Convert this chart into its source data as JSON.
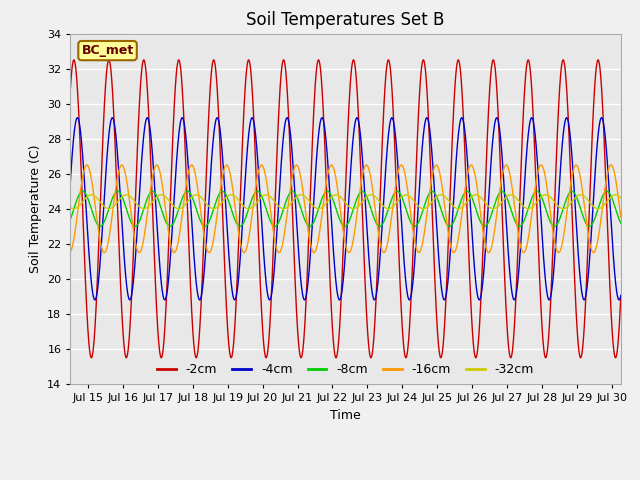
{
  "title": "Soil Temperatures Set B",
  "xlabel": "Time",
  "ylabel": "Soil Temperature (C)",
  "ylim": [
    14,
    34
  ],
  "xlim_days": [
    14.5,
    30.25
  ],
  "xtick_days": [
    15,
    16,
    17,
    18,
    19,
    20,
    21,
    22,
    23,
    24,
    25,
    26,
    27,
    28,
    29,
    30
  ],
  "xtick_labels": [
    "Jul 15",
    "Jul 16",
    "Jul 17",
    "Jul 18",
    "Jul 19",
    "Jul 20",
    "Jul 21",
    "Jul 22",
    "Jul 23",
    "Jul 24",
    "Jul 25",
    "Jul 26",
    "Jul 27",
    "Jul 28",
    "Jul 29",
    "Jul 30"
  ],
  "series": [
    {
      "label": "-2cm",
      "color": "#cc0000",
      "amplitude": 8.5,
      "mean": 24.0,
      "phase_shift": 0.35,
      "period": 1.0
    },
    {
      "label": "-4cm",
      "color": "#0000cc",
      "amplitude": 5.2,
      "mean": 24.0,
      "phase_shift": 0.45,
      "period": 1.0
    },
    {
      "label": "-8cm",
      "color": "#00cc00",
      "amplitude": 1.0,
      "mean": 24.0,
      "phase_shift": 0.6,
      "period": 1.0
    },
    {
      "label": "-16cm",
      "color": "#ff9900",
      "amplitude": 2.5,
      "mean": 24.0,
      "phase_shift": 0.72,
      "period": 1.0
    },
    {
      "label": "-32cm",
      "color": "#cccc00",
      "amplitude": 0.4,
      "mean": 24.4,
      "phase_shift": 0.85,
      "period": 1.0
    }
  ],
  "legend_label": "BC_met",
  "legend_label_bg": "#ffff99",
  "legend_label_border": "#996600",
  "bg_color": "#e8e8e8",
  "fig_bg_color": "#f0f0f0",
  "grid_color": "#ffffff",
  "title_fontsize": 12,
  "axis_label_fontsize": 9,
  "tick_fontsize": 8,
  "legend_fontsize": 9
}
